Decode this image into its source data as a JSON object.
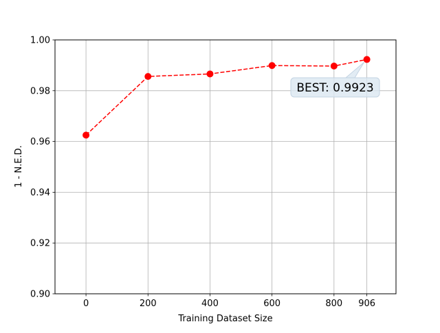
{
  "chart_data": {
    "type": "line",
    "title": "",
    "xlabel": "Training Dataset Size",
    "ylabel": "1 - N.E.D.",
    "x": [
      0,
      200,
      400,
      600,
      800,
      906
    ],
    "y": [
      0.9625,
      0.9856,
      0.9866,
      0.9899,
      0.9897,
      0.9923
    ],
    "xlim": [
      -100,
      1000
    ],
    "ylim": [
      0.9,
      1.0
    ],
    "x_ticks": [
      "0",
      "200",
      "400",
      "600",
      "800",
      "906"
    ],
    "y_ticks": [
      "0.90",
      "0.92",
      "0.94",
      "0.96",
      "0.98",
      "1.00"
    ],
    "grid": true,
    "line_style": "dashed",
    "marker": "circle",
    "color": "#ff0000",
    "annotation": {
      "text": "BEST: 0.9923",
      "x": 906,
      "y": 0.9923
    }
  }
}
